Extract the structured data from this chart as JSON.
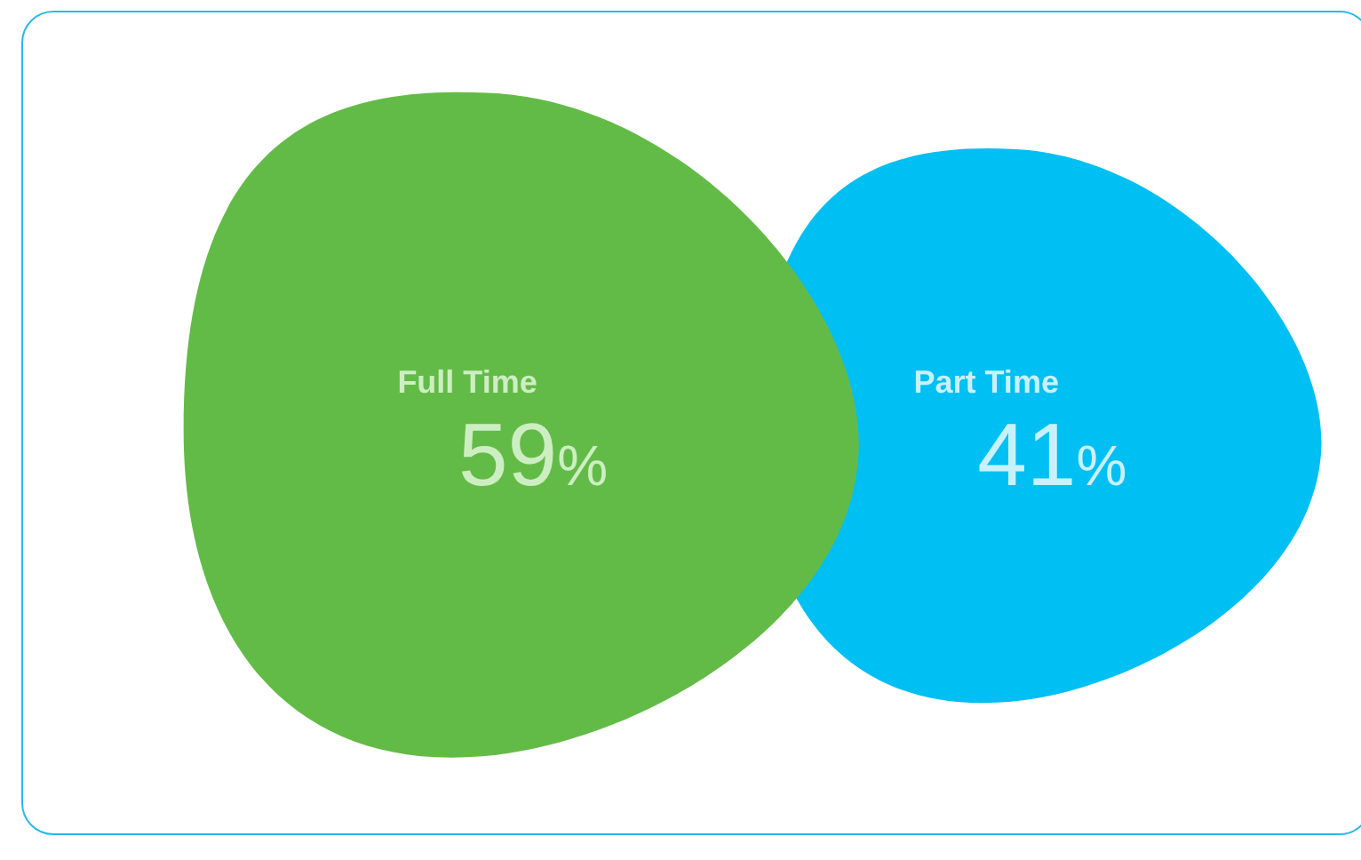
{
  "chart_data": {
    "type": "other",
    "categories": [
      "Full Time",
      "Part Time"
    ],
    "values": [
      59,
      41
    ],
    "colors": [
      "#63bb47",
      "#00bff2"
    ],
    "value_labels": [
      "59%",
      "41%"
    ]
  }
}
